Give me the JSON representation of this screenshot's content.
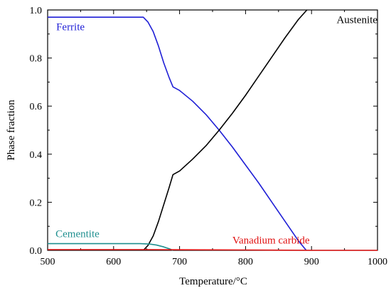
{
  "chart_data": {
    "type": "line",
    "xlabel": "Temperature/°C",
    "ylabel": "Phase fraction",
    "xlim": [
      500,
      1000
    ],
    "ylim": [
      0,
      1.0
    ],
    "x_ticks": [
      500,
      600,
      700,
      800,
      900,
      1000
    ],
    "y_ticks": [
      0.0,
      0.2,
      0.4,
      0.6,
      0.8,
      1.0
    ],
    "grid": false,
    "legend": "none",
    "series": [
      {
        "name": "Ferrite",
        "color": "#1f1fd6",
        "x": [
          500,
          645,
          652,
          660,
          668,
          676,
          684,
          690,
          700,
          720,
          740,
          760,
          780,
          800,
          820,
          840,
          860,
          880,
          892
        ],
        "y": [
          0.97,
          0.97,
          0.95,
          0.91,
          0.85,
          0.78,
          0.72,
          0.68,
          0.665,
          0.62,
          0.565,
          0.5,
          0.43,
          0.355,
          0.28,
          0.2,
          0.12,
          0.04,
          0.0
        ]
      },
      {
        "name": "Austenite",
        "color": "#000000",
        "x": [
          645,
          652,
          660,
          668,
          676,
          684,
          690,
          700,
          720,
          740,
          760,
          780,
          800,
          820,
          840,
          860,
          880,
          893
        ],
        "y": [
          0.0,
          0.02,
          0.06,
          0.12,
          0.19,
          0.26,
          0.315,
          0.33,
          0.38,
          0.435,
          0.5,
          0.57,
          0.645,
          0.725,
          0.805,
          0.885,
          0.96,
          1.0
        ]
      },
      {
        "name": "Cementite",
        "color": "#1f8f8f",
        "x": [
          500,
          640,
          655,
          665,
          675,
          685,
          690
        ],
        "y": [
          0.028,
          0.028,
          0.026,
          0.022,
          0.015,
          0.006,
          0.0
        ]
      },
      {
        "name": "Vanadium carbide",
        "color": "#e01010",
        "x": [
          500,
          650,
          700,
          800,
          900,
          1000
        ],
        "y": [
          0.003,
          0.003,
          0.0025,
          0.0015,
          0.0,
          0.0
        ]
      }
    ]
  }
}
